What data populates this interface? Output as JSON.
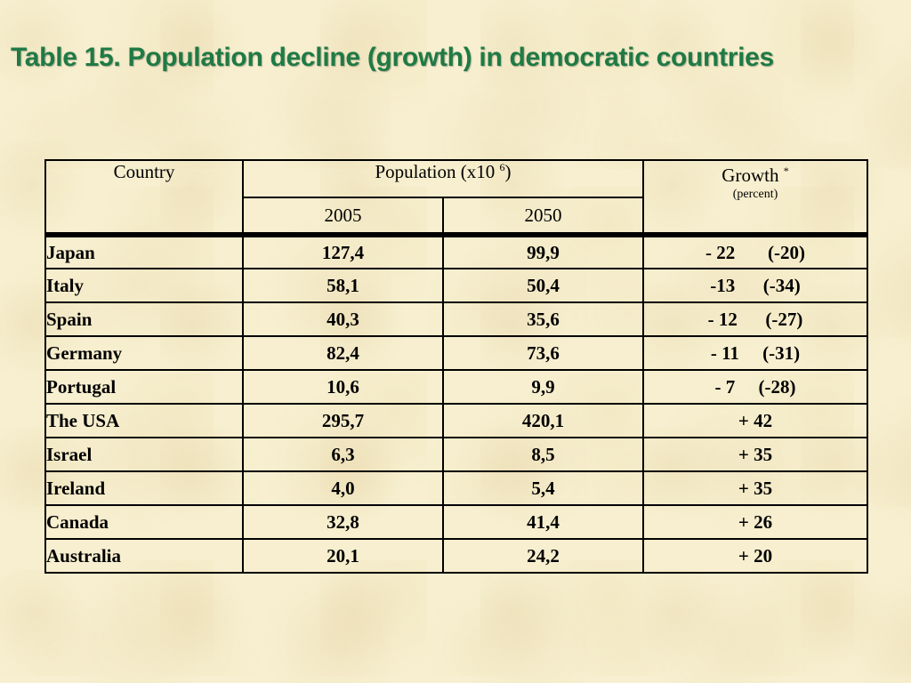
{
  "title": "Table 15. Population decline (growth) in democratic countries",
  "colors": {
    "title": "#1f7a45",
    "background": "#f7efcf"
  },
  "table": {
    "headers": {
      "country": "Country",
      "population": "Population  (x10 ",
      "population_exp": "6",
      "population_close": ")",
      "growth": "Growth ",
      "growth_mark": "*",
      "growth_unit": "(percent)",
      "year_2005": "2005",
      "year_2050": "2050"
    },
    "rows": [
      {
        "country": "Japan",
        "p2005": "127,4",
        "p2050": "99,9",
        "growth": "- 22       (-20)"
      },
      {
        "country": "Italy",
        "p2005": "58,1",
        "p2050": "50,4",
        "growth": "-13      (-34)"
      },
      {
        "country": "Spain",
        "p2005": "40,3",
        "p2050": "35,6",
        "growth": "- 12      (-27)"
      },
      {
        "country": "Germany",
        "p2005": "82,4",
        "p2050": "73,6",
        "growth": "- 11     (-31)"
      },
      {
        "country": "Portugal",
        "p2005": "10,6",
        "p2050": "9,9",
        "growth": "- 7     (-28)"
      },
      {
        "country": "The USA",
        "p2005": "295,7",
        "p2050": "420,1",
        "growth": "+ 42"
      },
      {
        "country": "Israel",
        "p2005": "6,3",
        "p2050": "8,5",
        "growth": "+ 35"
      },
      {
        "country": "Ireland",
        "p2005": "4,0",
        "p2050": "5,4",
        "growth": "+ 35"
      },
      {
        "country": "Canada",
        "p2005": "32,8",
        "p2050": "41,4",
        "growth": "+ 26"
      },
      {
        "country": "Australia",
        "p2005": "20,1",
        "p2050": "24,2",
        "growth": "+ 20"
      }
    ]
  }
}
